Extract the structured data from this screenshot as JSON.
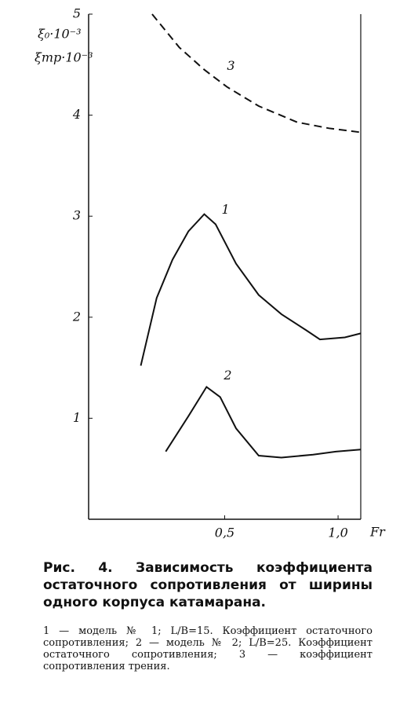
{
  "chart_data": {
    "type": "line",
    "y_label_1": "ξ₀·10⁻³",
    "y_label_2": "ξтр·10⁻³",
    "x_label": "Fr",
    "xlim": [
      -0.1,
      1.1
    ],
    "xticks": [
      {
        "value": 0.5,
        "label": "0,5"
      },
      {
        "value": 1.0,
        "label": "1,0"
      }
    ],
    "ylim": [
      0,
      5
    ],
    "yticks": [
      1,
      2,
      3,
      4,
      5
    ],
    "series": [
      {
        "name": "1",
        "color": "#111111",
        "dash": false,
        "x": [
          0.13,
          0.2,
          0.27,
          0.34,
          0.41,
          0.46,
          0.55,
          0.65,
          0.75,
          0.86,
          0.92,
          1.03,
          1.1
        ],
        "values": [
          1.52,
          2.19,
          2.57,
          2.85,
          3.02,
          2.92,
          2.53,
          2.22,
          2.03,
          1.87,
          1.78,
          1.8,
          1.84
        ]
      },
      {
        "name": "2",
        "color": "#111111",
        "dash": false,
        "x": [
          0.24,
          0.34,
          0.42,
          0.48,
          0.55,
          0.65,
          0.75,
          0.89,
          0.99,
          1.1
        ],
        "values": [
          0.67,
          1.02,
          1.31,
          1.21,
          0.9,
          0.63,
          0.61,
          0.64,
          0.67,
          0.69
        ]
      },
      {
        "name": "3",
        "color": "#111111",
        "dash": true,
        "x": [
          0.18,
          0.3,
          0.41,
          0.51,
          0.65,
          0.82,
          0.96,
          1.1
        ],
        "values": [
          5.0,
          4.67,
          4.45,
          4.28,
          4.09,
          3.93,
          3.87,
          3.83
        ]
      }
    ]
  },
  "caption": {
    "title": "Рис. 4. Зависимость коэффициента остаточного сопротивления от ширины одного корпуса катамарана.",
    "text": "1 — модель № 1; L/B=15. Коэффициент остаточного сопротивления; 2 — модель № 2; L/B=25. Коэффициент остаточного сопротивления; 3 — коэффициент сопротивления трения."
  }
}
